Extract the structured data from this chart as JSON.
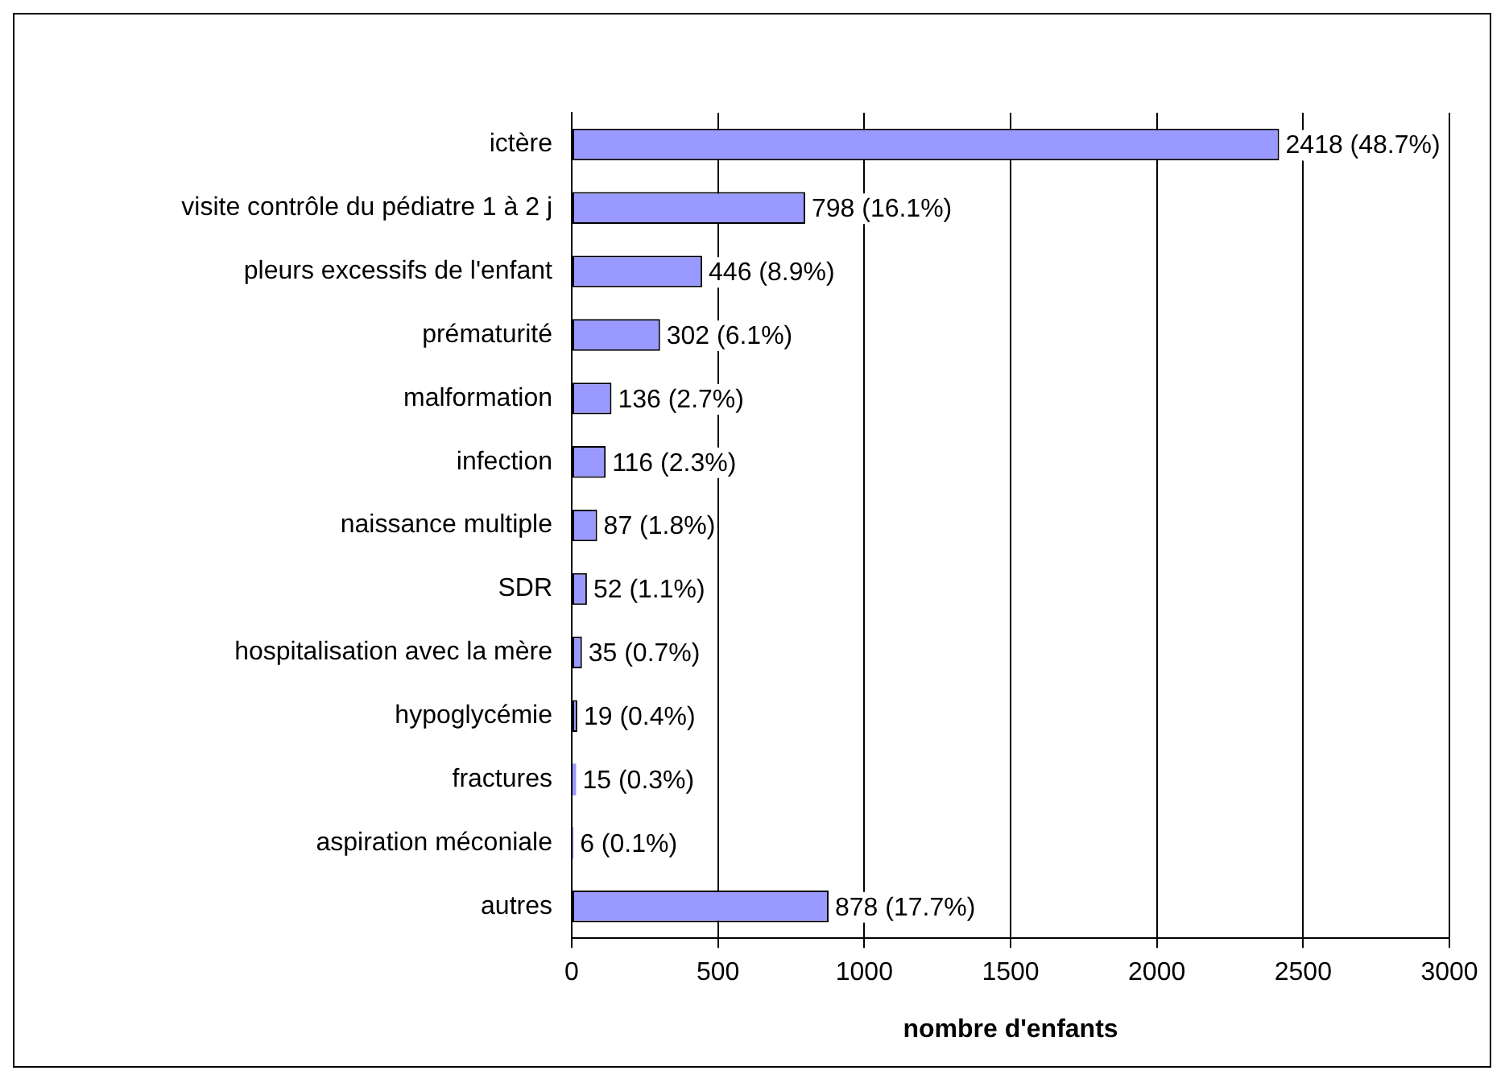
{
  "chart_data": {
    "type": "bar",
    "orientation": "horizontal",
    "categories": [
      "ictère",
      "visite contrôle du pédiatre 1 à 2 j",
      "pleurs excessifs de l'enfant",
      "prématurité",
      "malformation",
      "infection",
      "naissance multiple",
      "SDR",
      "hospitalisation avec la mère",
      "hypoglycémie",
      "fractures",
      "aspiration méconiale",
      "autres"
    ],
    "values": [
      2418,
      798,
      446,
      302,
      136,
      116,
      87,
      52,
      35,
      19,
      15,
      6,
      878
    ],
    "value_labels": [
      "2418 (48.7%)",
      "798 (16.1%)",
      "446 (8.9%)",
      "302 (6.1%)",
      "136 (2.7%)",
      "116 (2.3%)",
      "87 (1.8%)",
      "52 (1.1%)",
      "35 (0.7%)",
      "19 (0.4%)",
      "15 (0.3%)",
      "6 (0.1%)",
      "878 (17.7%)"
    ],
    "color": "#9999ff",
    "xlabel": "nombre d'enfants",
    "xlim": [
      0,
      3000
    ],
    "xticks": [
      0,
      500,
      1000,
      1500,
      2000,
      2500,
      3000
    ],
    "grid": "x",
    "legend": false
  }
}
